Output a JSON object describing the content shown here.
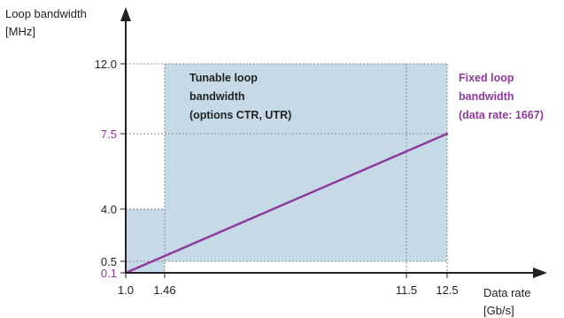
{
  "chart_data": {
    "type": "line",
    "ylabel_line1": "Loop bandwidth",
    "ylabel_line2": "[MHz]",
    "xlabel_line1": "Data rate",
    "xlabel_line2": "[Gb/s]",
    "x_ticks": [
      "1.0",
      "1.46",
      "11.5",
      "12.5"
    ],
    "y_ticks": [
      "0.1",
      "0.5",
      "4.0",
      "7.5",
      "12.0"
    ],
    "regions": [
      {
        "name": "low-rate-region",
        "x": [
          1.0,
          1.46
        ],
        "y": [
          0.1,
          4.0
        ]
      },
      {
        "name": "tunable-region",
        "x": [
          1.46,
          12.5
        ],
        "y": [
          0.5,
          12.0
        ]
      }
    ],
    "tunable_label": [
      "Tunable loop",
      "bandwidth",
      "(options CTR, UTR)"
    ],
    "series": [
      {
        "name": "Fixed loop bandwidth",
        "x": [
          1.0,
          12.5
        ],
        "y": [
          0.1,
          7.5
        ]
      }
    ],
    "fixed_label": [
      "Fixed loop",
      "bandwidth",
      "(data rate: 1667)"
    ],
    "colors": {
      "fill": "#c5dae6",
      "line": "#8e3a9d",
      "axis": "#222222",
      "grid": "#8a8a8a",
      "highlight_tick": "#8e3a9d"
    }
  }
}
